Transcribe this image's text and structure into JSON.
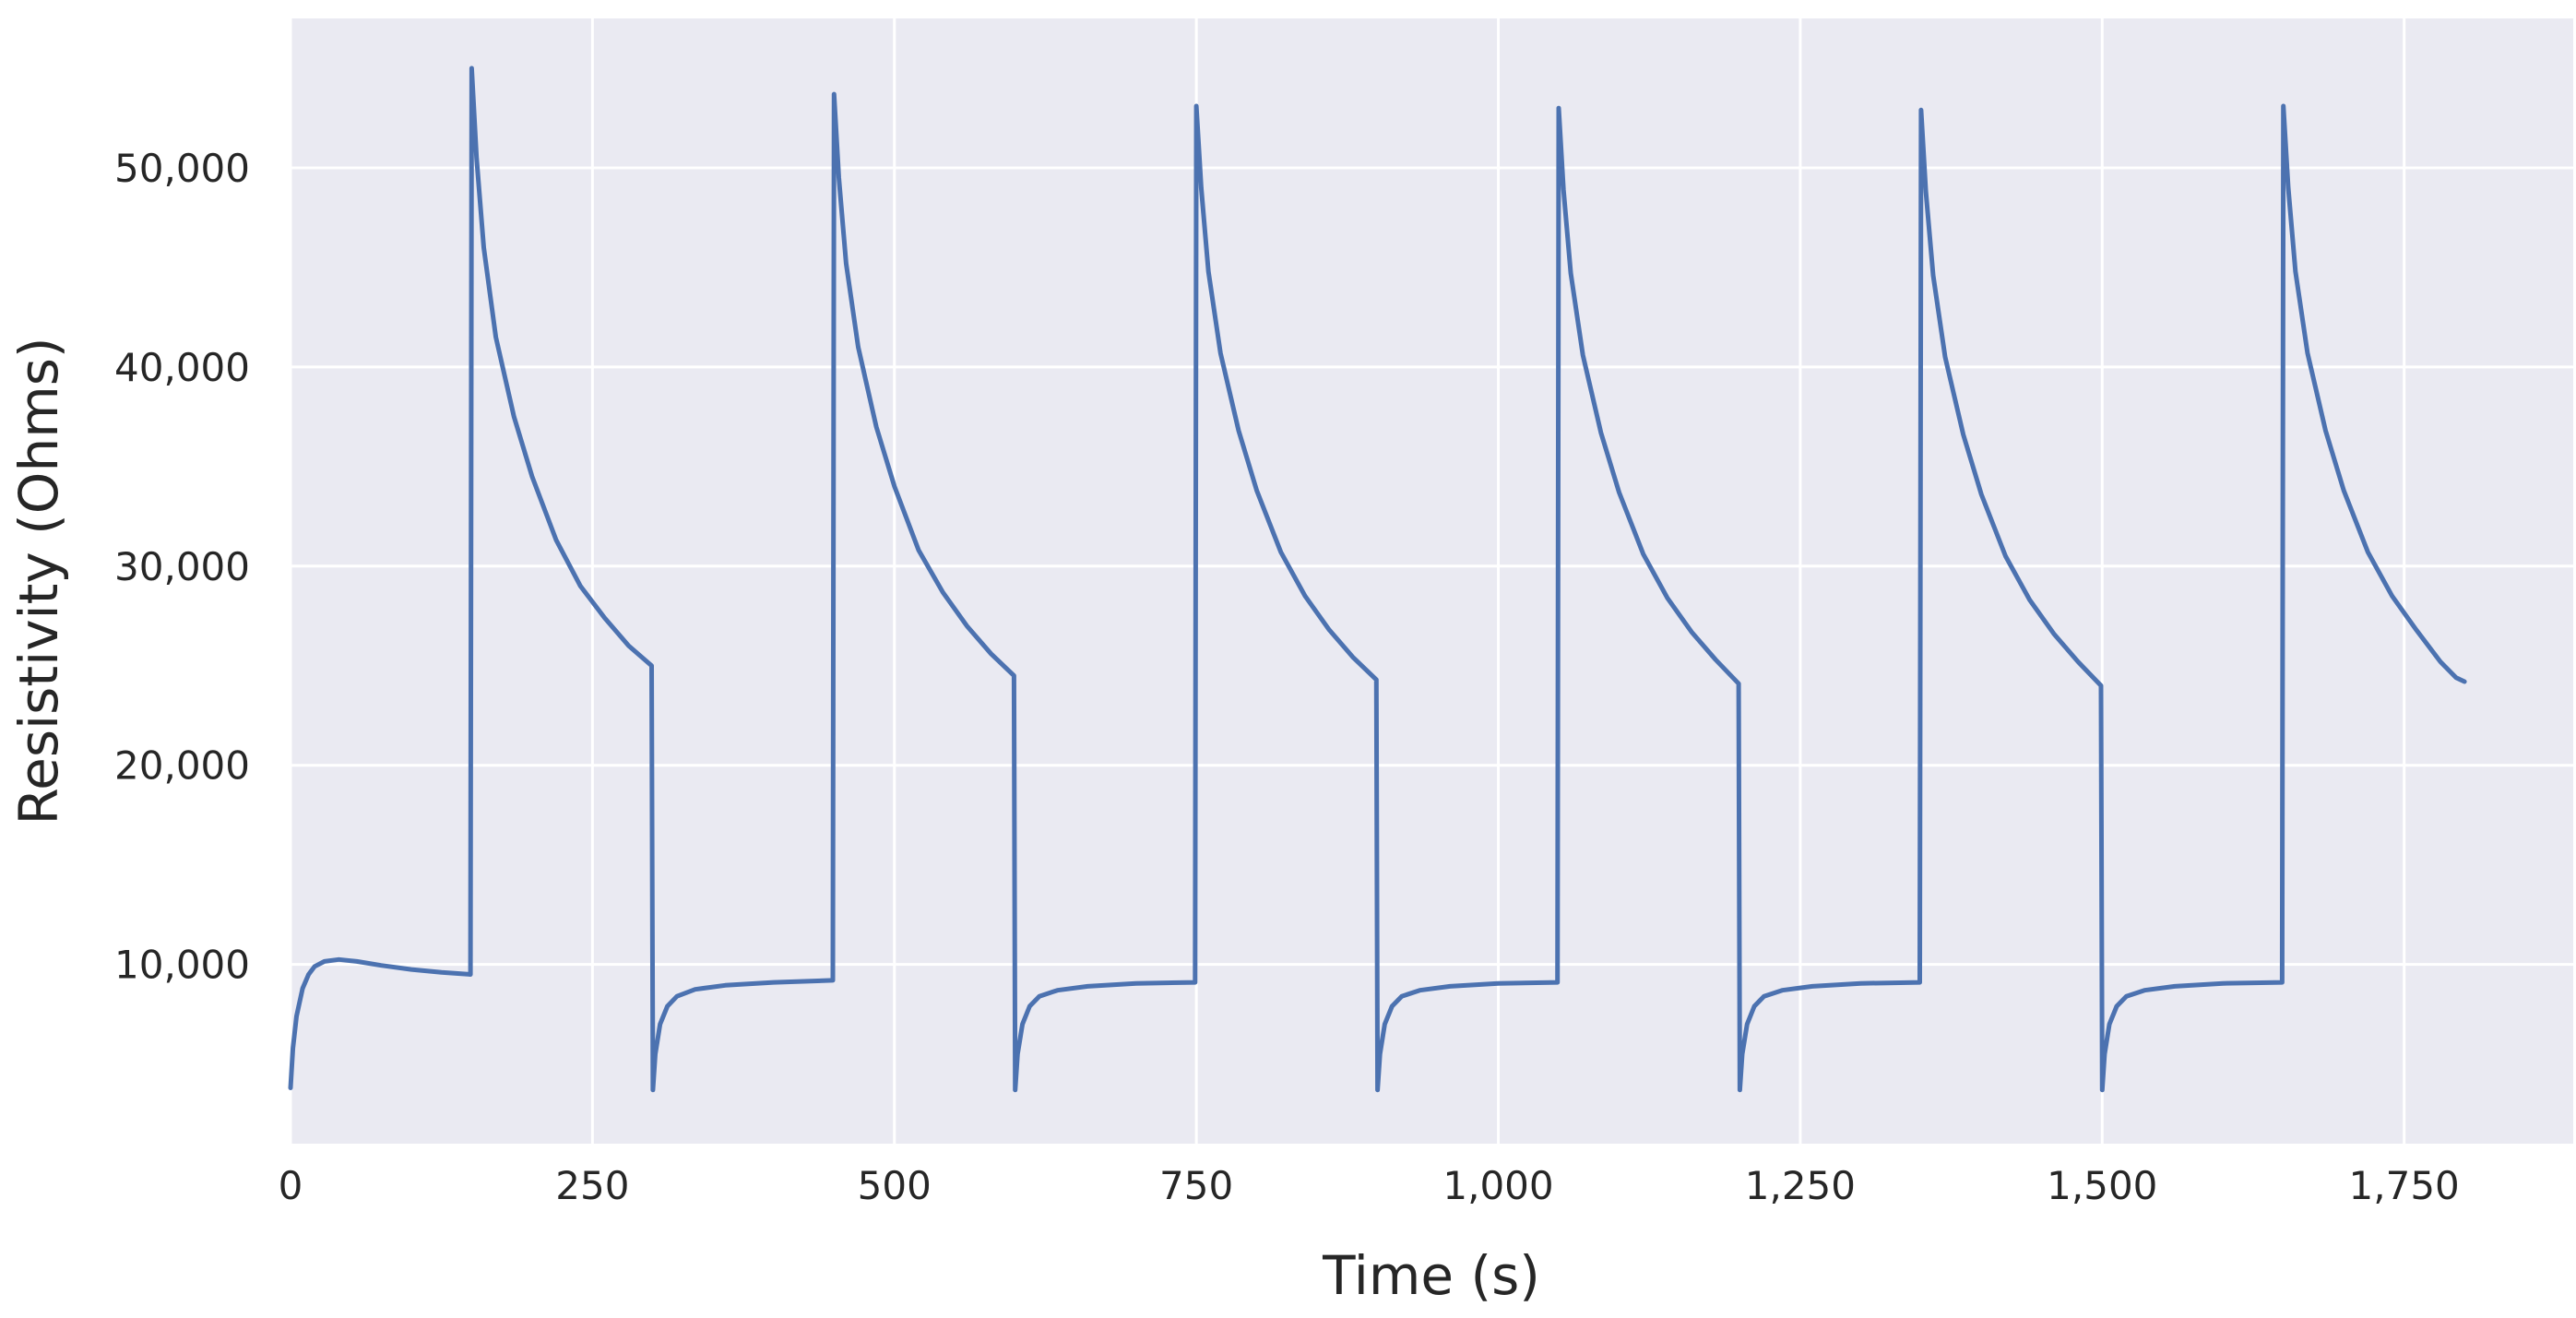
{
  "chart_data": {
    "type": "line",
    "xlabel": "Time (s)",
    "ylabel": "Resistivity (Ohms)",
    "xlim": [
      0,
      1890
    ],
    "ylim": [
      1000,
      57500
    ],
    "x_ticks": [
      0,
      250,
      500,
      750,
      1000,
      1250,
      1500,
      1750
    ],
    "x_tick_labels": [
      "0",
      "250",
      "500",
      "750",
      "1,000",
      "1,250",
      "1,500",
      "1,750"
    ],
    "y_ticks": [
      10000,
      20000,
      30000,
      40000,
      50000
    ],
    "y_tick_labels": [
      "10,000",
      "20,000",
      "30,000",
      "40,000",
      "50,000"
    ],
    "grid": true,
    "colors": {
      "background": "#eaeaf2",
      "grid": "#ffffff",
      "line": "#4c72b0"
    },
    "series": [
      {
        "points": [
          [
            0,
            3800
          ],
          [
            2,
            5800
          ],
          [
            5,
            7400
          ],
          [
            10,
            8800
          ],
          [
            15,
            9500
          ],
          [
            20,
            9900
          ],
          [
            28,
            10150
          ],
          [
            40,
            10250
          ],
          [
            55,
            10150
          ],
          [
            75,
            9950
          ],
          [
            100,
            9750
          ],
          [
            125,
            9600
          ],
          [
            149,
            9500
          ],
          [
            150,
            55000
          ],
          [
            154,
            50500
          ],
          [
            160,
            46000
          ],
          [
            170,
            41500
          ],
          [
            185,
            37500
          ],
          [
            200,
            34500
          ],
          [
            220,
            31300
          ],
          [
            240,
            29000
          ],
          [
            260,
            27400
          ],
          [
            280,
            26000
          ],
          [
            299,
            25000
          ],
          [
            300,
            3700
          ],
          [
            302,
            5500
          ],
          [
            306,
            7000
          ],
          [
            312,
            7900
          ],
          [
            320,
            8400
          ],
          [
            335,
            8750
          ],
          [
            360,
            8950
          ],
          [
            400,
            9100
          ],
          [
            449,
            9200
          ],
          [
            450,
            53700
          ],
          [
            454,
            49500
          ],
          [
            460,
            45200
          ],
          [
            470,
            41000
          ],
          [
            485,
            37000
          ],
          [
            500,
            34000
          ],
          [
            520,
            30800
          ],
          [
            540,
            28700
          ],
          [
            560,
            27000
          ],
          [
            580,
            25600
          ],
          [
            599,
            24500
          ],
          [
            600,
            3700
          ],
          [
            602,
            5500
          ],
          [
            606,
            7000
          ],
          [
            612,
            7900
          ],
          [
            620,
            8400
          ],
          [
            635,
            8700
          ],
          [
            660,
            8900
          ],
          [
            700,
            9050
          ],
          [
            749,
            9100
          ],
          [
            750,
            53100
          ],
          [
            754,
            49000
          ],
          [
            760,
            44800
          ],
          [
            770,
            40700
          ],
          [
            785,
            36800
          ],
          [
            800,
            33800
          ],
          [
            820,
            30700
          ],
          [
            840,
            28500
          ],
          [
            860,
            26800
          ],
          [
            880,
            25400
          ],
          [
            899,
            24300
          ],
          [
            900,
            3700
          ],
          [
            902,
            5500
          ],
          [
            906,
            7000
          ],
          [
            912,
            7900
          ],
          [
            920,
            8400
          ],
          [
            935,
            8700
          ],
          [
            960,
            8900
          ],
          [
            1000,
            9050
          ],
          [
            1049,
            9100
          ],
          [
            1050,
            53000
          ],
          [
            1054,
            48900
          ],
          [
            1060,
            44700
          ],
          [
            1070,
            40600
          ],
          [
            1085,
            36700
          ],
          [
            1100,
            33700
          ],
          [
            1120,
            30600
          ],
          [
            1140,
            28400
          ],
          [
            1160,
            26700
          ],
          [
            1180,
            25300
          ],
          [
            1199,
            24100
          ],
          [
            1200,
            3700
          ],
          [
            1202,
            5500
          ],
          [
            1206,
            7000
          ],
          [
            1212,
            7900
          ],
          [
            1220,
            8400
          ],
          [
            1235,
            8700
          ],
          [
            1260,
            8900
          ],
          [
            1300,
            9050
          ],
          [
            1349,
            9100
          ],
          [
            1350,
            52900
          ],
          [
            1354,
            48800
          ],
          [
            1360,
            44600
          ],
          [
            1370,
            40500
          ],
          [
            1385,
            36600
          ],
          [
            1400,
            33600
          ],
          [
            1420,
            30500
          ],
          [
            1440,
            28300
          ],
          [
            1460,
            26600
          ],
          [
            1480,
            25200
          ],
          [
            1499,
            24000
          ],
          [
            1500,
            3700
          ],
          [
            1502,
            5500
          ],
          [
            1506,
            7000
          ],
          [
            1512,
            7900
          ],
          [
            1520,
            8400
          ],
          [
            1535,
            8700
          ],
          [
            1560,
            8900
          ],
          [
            1600,
            9050
          ],
          [
            1649,
            9100
          ],
          [
            1650,
            53100
          ],
          [
            1654,
            49000
          ],
          [
            1660,
            44800
          ],
          [
            1670,
            40700
          ],
          [
            1685,
            36800
          ],
          [
            1700,
            33800
          ],
          [
            1720,
            30700
          ],
          [
            1740,
            28500
          ],
          [
            1760,
            26800
          ],
          [
            1780,
            25200
          ],
          [
            1793,
            24400
          ],
          [
            1800,
            24200
          ]
        ]
      }
    ]
  }
}
